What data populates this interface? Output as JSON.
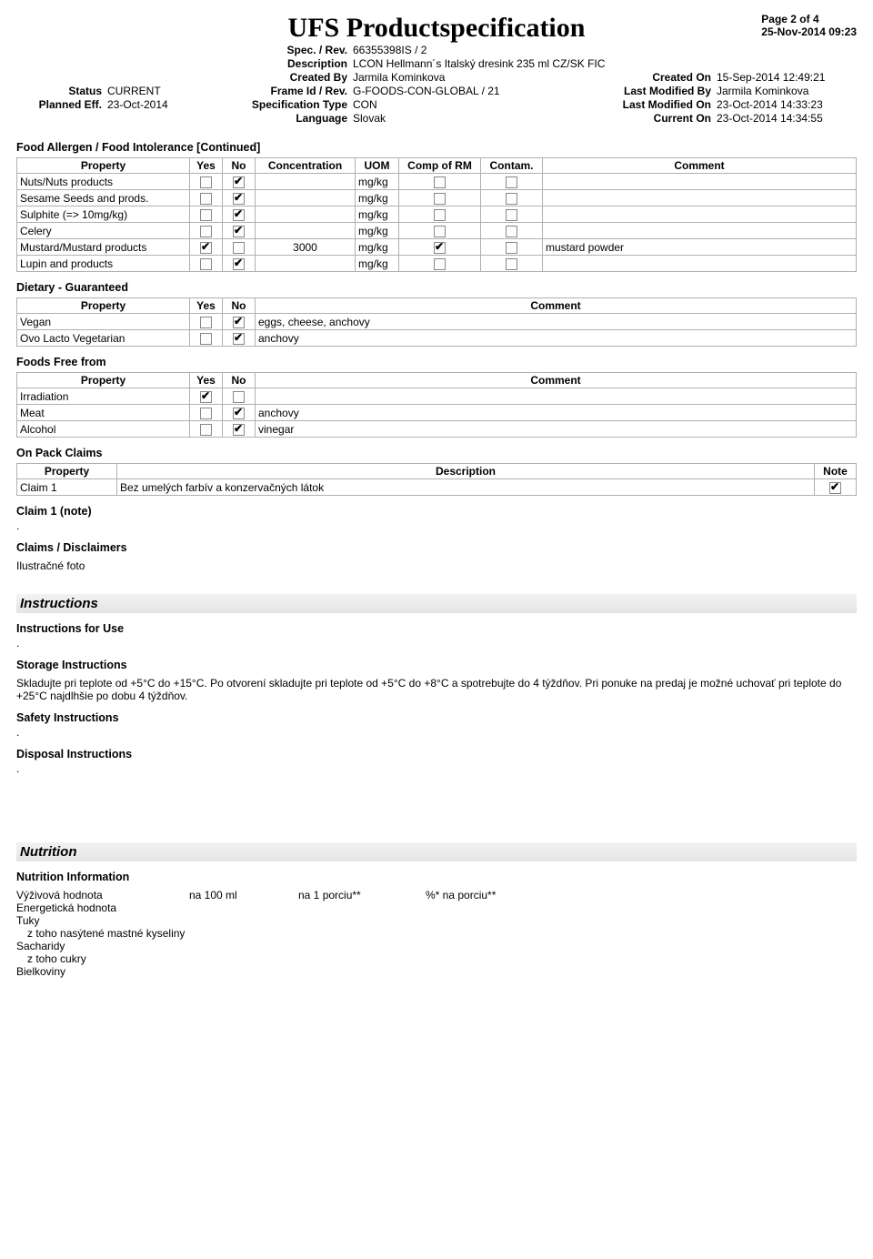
{
  "page_info": {
    "page": "Page 2 of 4",
    "timestamp": "25-Nov-2014 09:23"
  },
  "title": "UFS Productspecification",
  "header": {
    "spec_rev_label": "Spec. / Rev.",
    "spec_rev": "66355398IS  /  2",
    "description_label": "Description",
    "description": "LCON Hellmann´s Italský dresink 235 ml CZ/SK FIC",
    "created_by_label": "Created By",
    "created_by": "Jarmila Kominkova",
    "created_on_label": "Created On",
    "created_on": "15-Sep-2014 12:49:21",
    "status_label": "Status",
    "status": "CURRENT",
    "frame_label": "Frame Id / Rev.",
    "frame": "G-FOODS-CON-GLOBAL  /   21",
    "last_mod_by_label": "Last Modified By",
    "last_mod_by": "Jarmila Kominkova",
    "planned_eff_label": "Planned Eff.",
    "planned_eff": "23-Oct-2014",
    "spec_type_label": "Specification Type",
    "spec_type": "CON",
    "last_mod_on_label": "Last Modified On",
    "last_mod_on": "23-Oct-2014 14:33:23",
    "language_label": "Language",
    "language": "Slovak",
    "current_on_label": "Current On",
    "current_on": "23-Oct-2014 14:34:55"
  },
  "allergen": {
    "title": "Food Allergen / Food Intolerance [Continued]",
    "cols": {
      "property": "Property",
      "yes": "Yes",
      "no": "No",
      "conc": "Concentration",
      "uom": "UOM",
      "comp": "Comp of RM",
      "contam": "Contam.",
      "comment": "Comment"
    },
    "rows": [
      {
        "property": "Nuts/Nuts products",
        "yes": false,
        "no": true,
        "conc": "",
        "uom": "mg/kg",
        "comp": false,
        "contam": false,
        "comment": ""
      },
      {
        "property": "Sesame Seeds and prods.",
        "yes": false,
        "no": true,
        "conc": "",
        "uom": "mg/kg",
        "comp": false,
        "contam": false,
        "comment": ""
      },
      {
        "property": "Sulphite (=> 10mg/kg)",
        "yes": false,
        "no": true,
        "conc": "",
        "uom": "mg/kg",
        "comp": false,
        "contam": false,
        "comment": ""
      },
      {
        "property": "Celery",
        "yes": false,
        "no": true,
        "conc": "",
        "uom": "mg/kg",
        "comp": false,
        "contam": false,
        "comment": ""
      },
      {
        "property": "Mustard/Mustard products",
        "yes": true,
        "no": false,
        "conc": "3000",
        "uom": "mg/kg",
        "comp": true,
        "contam": false,
        "comment": "mustard powder"
      },
      {
        "property": "Lupin and products",
        "yes": false,
        "no": true,
        "conc": "",
        "uom": "mg/kg",
        "comp": false,
        "contam": false,
        "comment": ""
      }
    ]
  },
  "dietary": {
    "title": "Dietary - Guaranteed",
    "cols": {
      "property": "Property",
      "yes": "Yes",
      "no": "No",
      "comment": "Comment"
    },
    "rows": [
      {
        "property": "Vegan",
        "yes": false,
        "no": true,
        "comment": "eggs, cheese, anchovy"
      },
      {
        "property": "Ovo Lacto Vegetarian",
        "yes": false,
        "no": true,
        "comment": "anchovy"
      }
    ]
  },
  "freefrom": {
    "title": "Foods Free from",
    "cols": {
      "property": "Property",
      "yes": "Yes",
      "no": "No",
      "comment": "Comment"
    },
    "rows": [
      {
        "property": "Irradiation",
        "yes": true,
        "no": false,
        "comment": ""
      },
      {
        "property": "Meat",
        "yes": false,
        "no": true,
        "comment": "anchovy"
      },
      {
        "property": "Alcohol",
        "yes": false,
        "no": true,
        "comment": "vinegar"
      }
    ]
  },
  "onpack": {
    "title": "On Pack Claims",
    "cols": {
      "property": "Property",
      "description": "Description",
      "note": "Note"
    },
    "rows": [
      {
        "property": "Claim 1",
        "description": "Bez umelých farbív a konzervačných látok",
        "note": true
      }
    ]
  },
  "claim1note": {
    "title": "Claim 1 (note)",
    "text": "."
  },
  "claims_disclaimers": {
    "title": "Claims / Disclaimers",
    "text": "Ilustračné foto"
  },
  "instructions": {
    "banner": "Instructions",
    "use": {
      "title": "Instructions for Use",
      "text": "."
    },
    "storage": {
      "title": "Storage Instructions",
      "text": "Skladujte pri teplote od +5°C do +15°C. Po otvorení skladujte pri teplote od +5°C do +8°C a spotrebujte do 4 týždňov. Pri ponuke na predaj je možné uchovať pri teplote do +25°C najdlhšie po dobu 4 týždňov."
    },
    "safety": {
      "title": "Safety Instructions",
      "text": "."
    },
    "disposal": {
      "title": "Disposal Instructions",
      "text": "."
    }
  },
  "nutrition": {
    "banner": "Nutrition",
    "title": "Nutrition Information",
    "headers": {
      "c0": "Výživová hodnota",
      "c1": "na 100 ml",
      "c2": "na 1 porciu**",
      "c3": "%* na porciu**"
    },
    "rows": [
      "Energetická hodnota",
      "Tuky",
      "  z toho nasýtené mastné kyseliny",
      "Sacharidy",
      "  z toho cukry",
      "Bielkoviny"
    ]
  }
}
